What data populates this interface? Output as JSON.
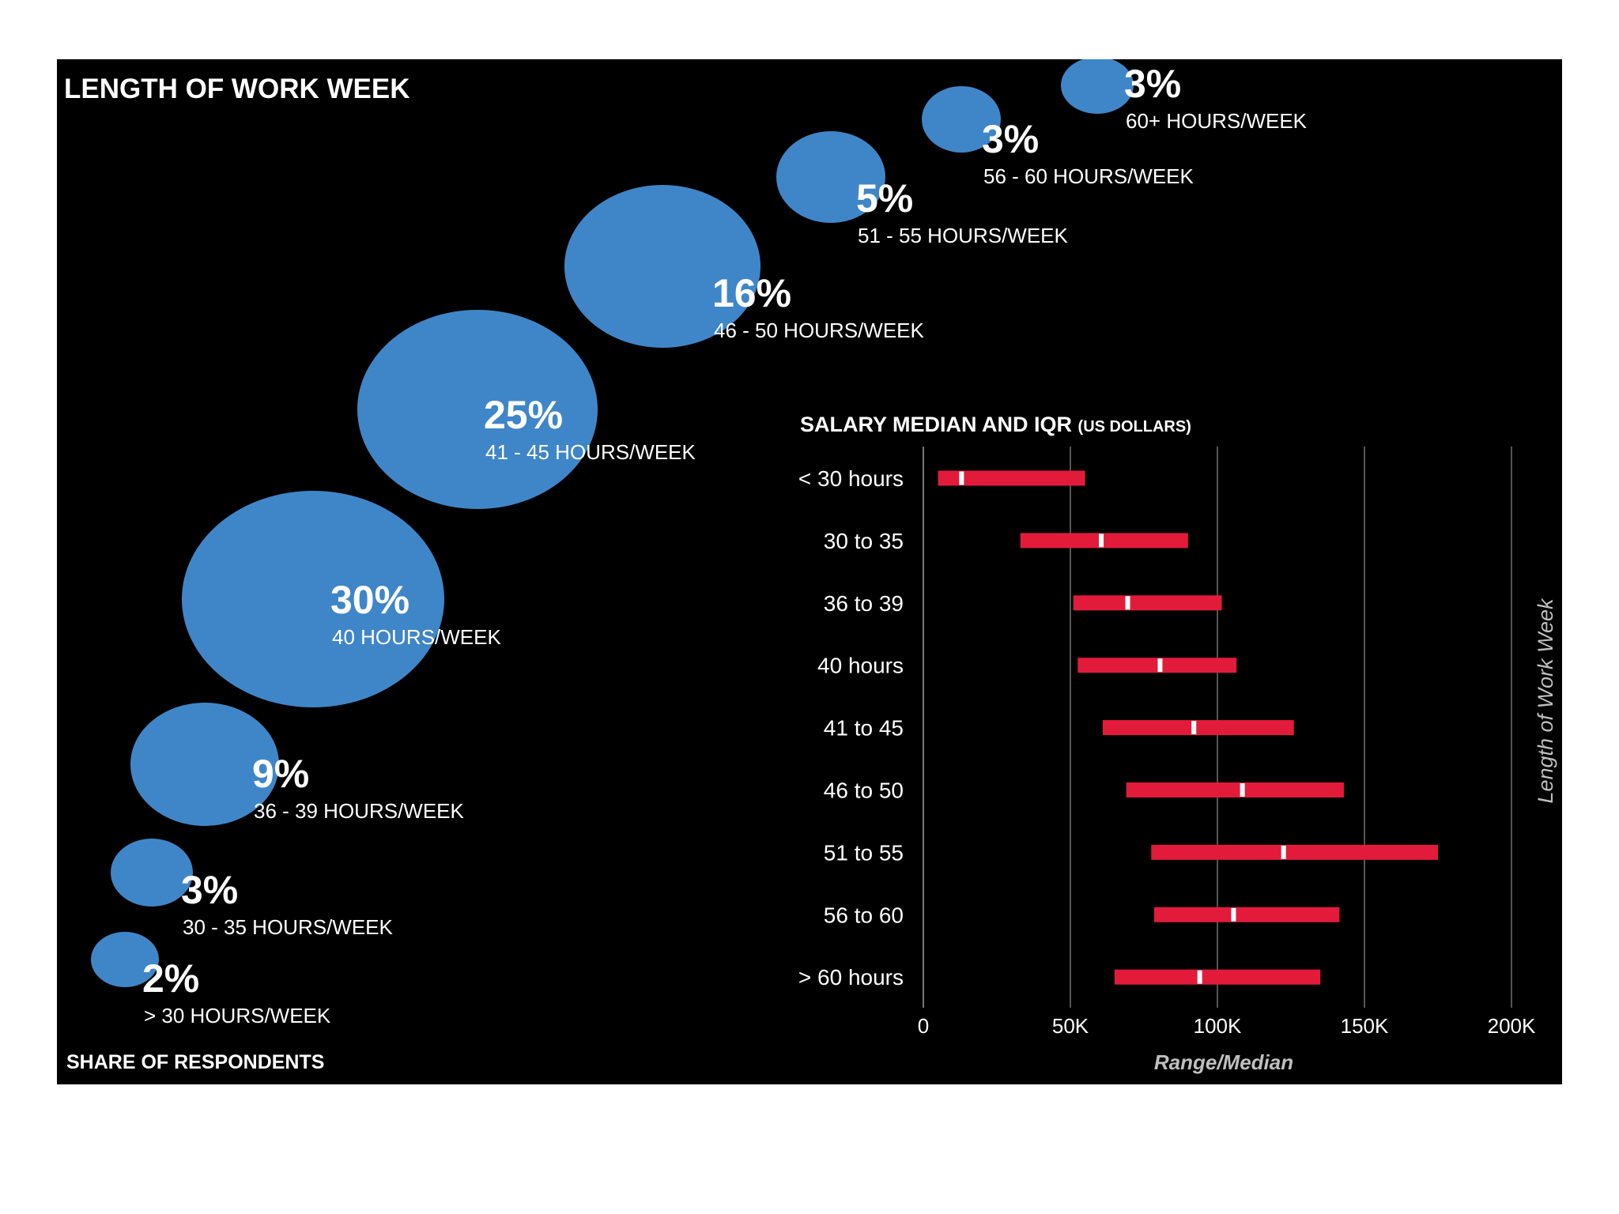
{
  "colors": {
    "background": "#000000",
    "bubble": "#3f86c8",
    "bar": "#e31b3a",
    "median": "#ffffff",
    "text": "#ffffff",
    "grid": "#555555",
    "axis_title": "#bfbfbf"
  },
  "chart_data": [
    {
      "type": "bubble",
      "title": "LENGTH OF WORK WEEK",
      "footer": "SHARE OF RESPONDENTS",
      "categories": [
        "> 30 HOURS/WEEK",
        "30 - 35 HOURS/WEEK",
        "36 - 39 HOURS/WEEK",
        "40 HOURS/WEEK",
        "41 - 45 HOURS/WEEK",
        "46 - 50 HOURS/WEEK",
        "51 - 55 HOURS/WEEK",
        "56 - 60 HOURS/WEEK",
        "60+ HOURS/WEEK"
      ],
      "values": [
        2,
        3,
        9,
        30,
        25,
        16,
        5,
        3,
        3
      ],
      "value_labels": [
        "2%",
        "3%",
        "9%",
        "30%",
        "25%",
        "16%",
        "5%",
        "3%",
        "3%"
      ]
    },
    {
      "type": "range",
      "title": "SALARY MEDIAN AND IQR",
      "title_unit": "(US DOLLARS)",
      "xlabel": "Range/Median",
      "ylabel": "Length of Work Week",
      "xlim": [
        0,
        200000
      ],
      "xticks": [
        0,
        50000,
        100000,
        150000,
        200000
      ],
      "xtick_labels": [
        "0",
        "50K",
        "100K",
        "150K",
        "200K"
      ],
      "grid": "vertical",
      "categories": [
        "< 30 hours",
        "30 to 35",
        "36 to 39",
        "40 hours",
        "41 to 45",
        "46 to 50",
        "51 to 55",
        "56 to 60",
        "> 60 hours"
      ],
      "series": [
        {
          "name": "Q1",
          "values": [
            5000,
            33000,
            51000,
            52500,
            61000,
            69000,
            77500,
            78500,
            65000
          ]
        },
        {
          "name": "Median",
          "values": [
            13000,
            60500,
            69500,
            80500,
            92000,
            108500,
            122500,
            105500,
            94000
          ]
        },
        {
          "name": "Q3",
          "values": [
            55000,
            90000,
            101500,
            106500,
            126000,
            143000,
            175000,
            141500,
            135000
          ]
        }
      ]
    }
  ]
}
